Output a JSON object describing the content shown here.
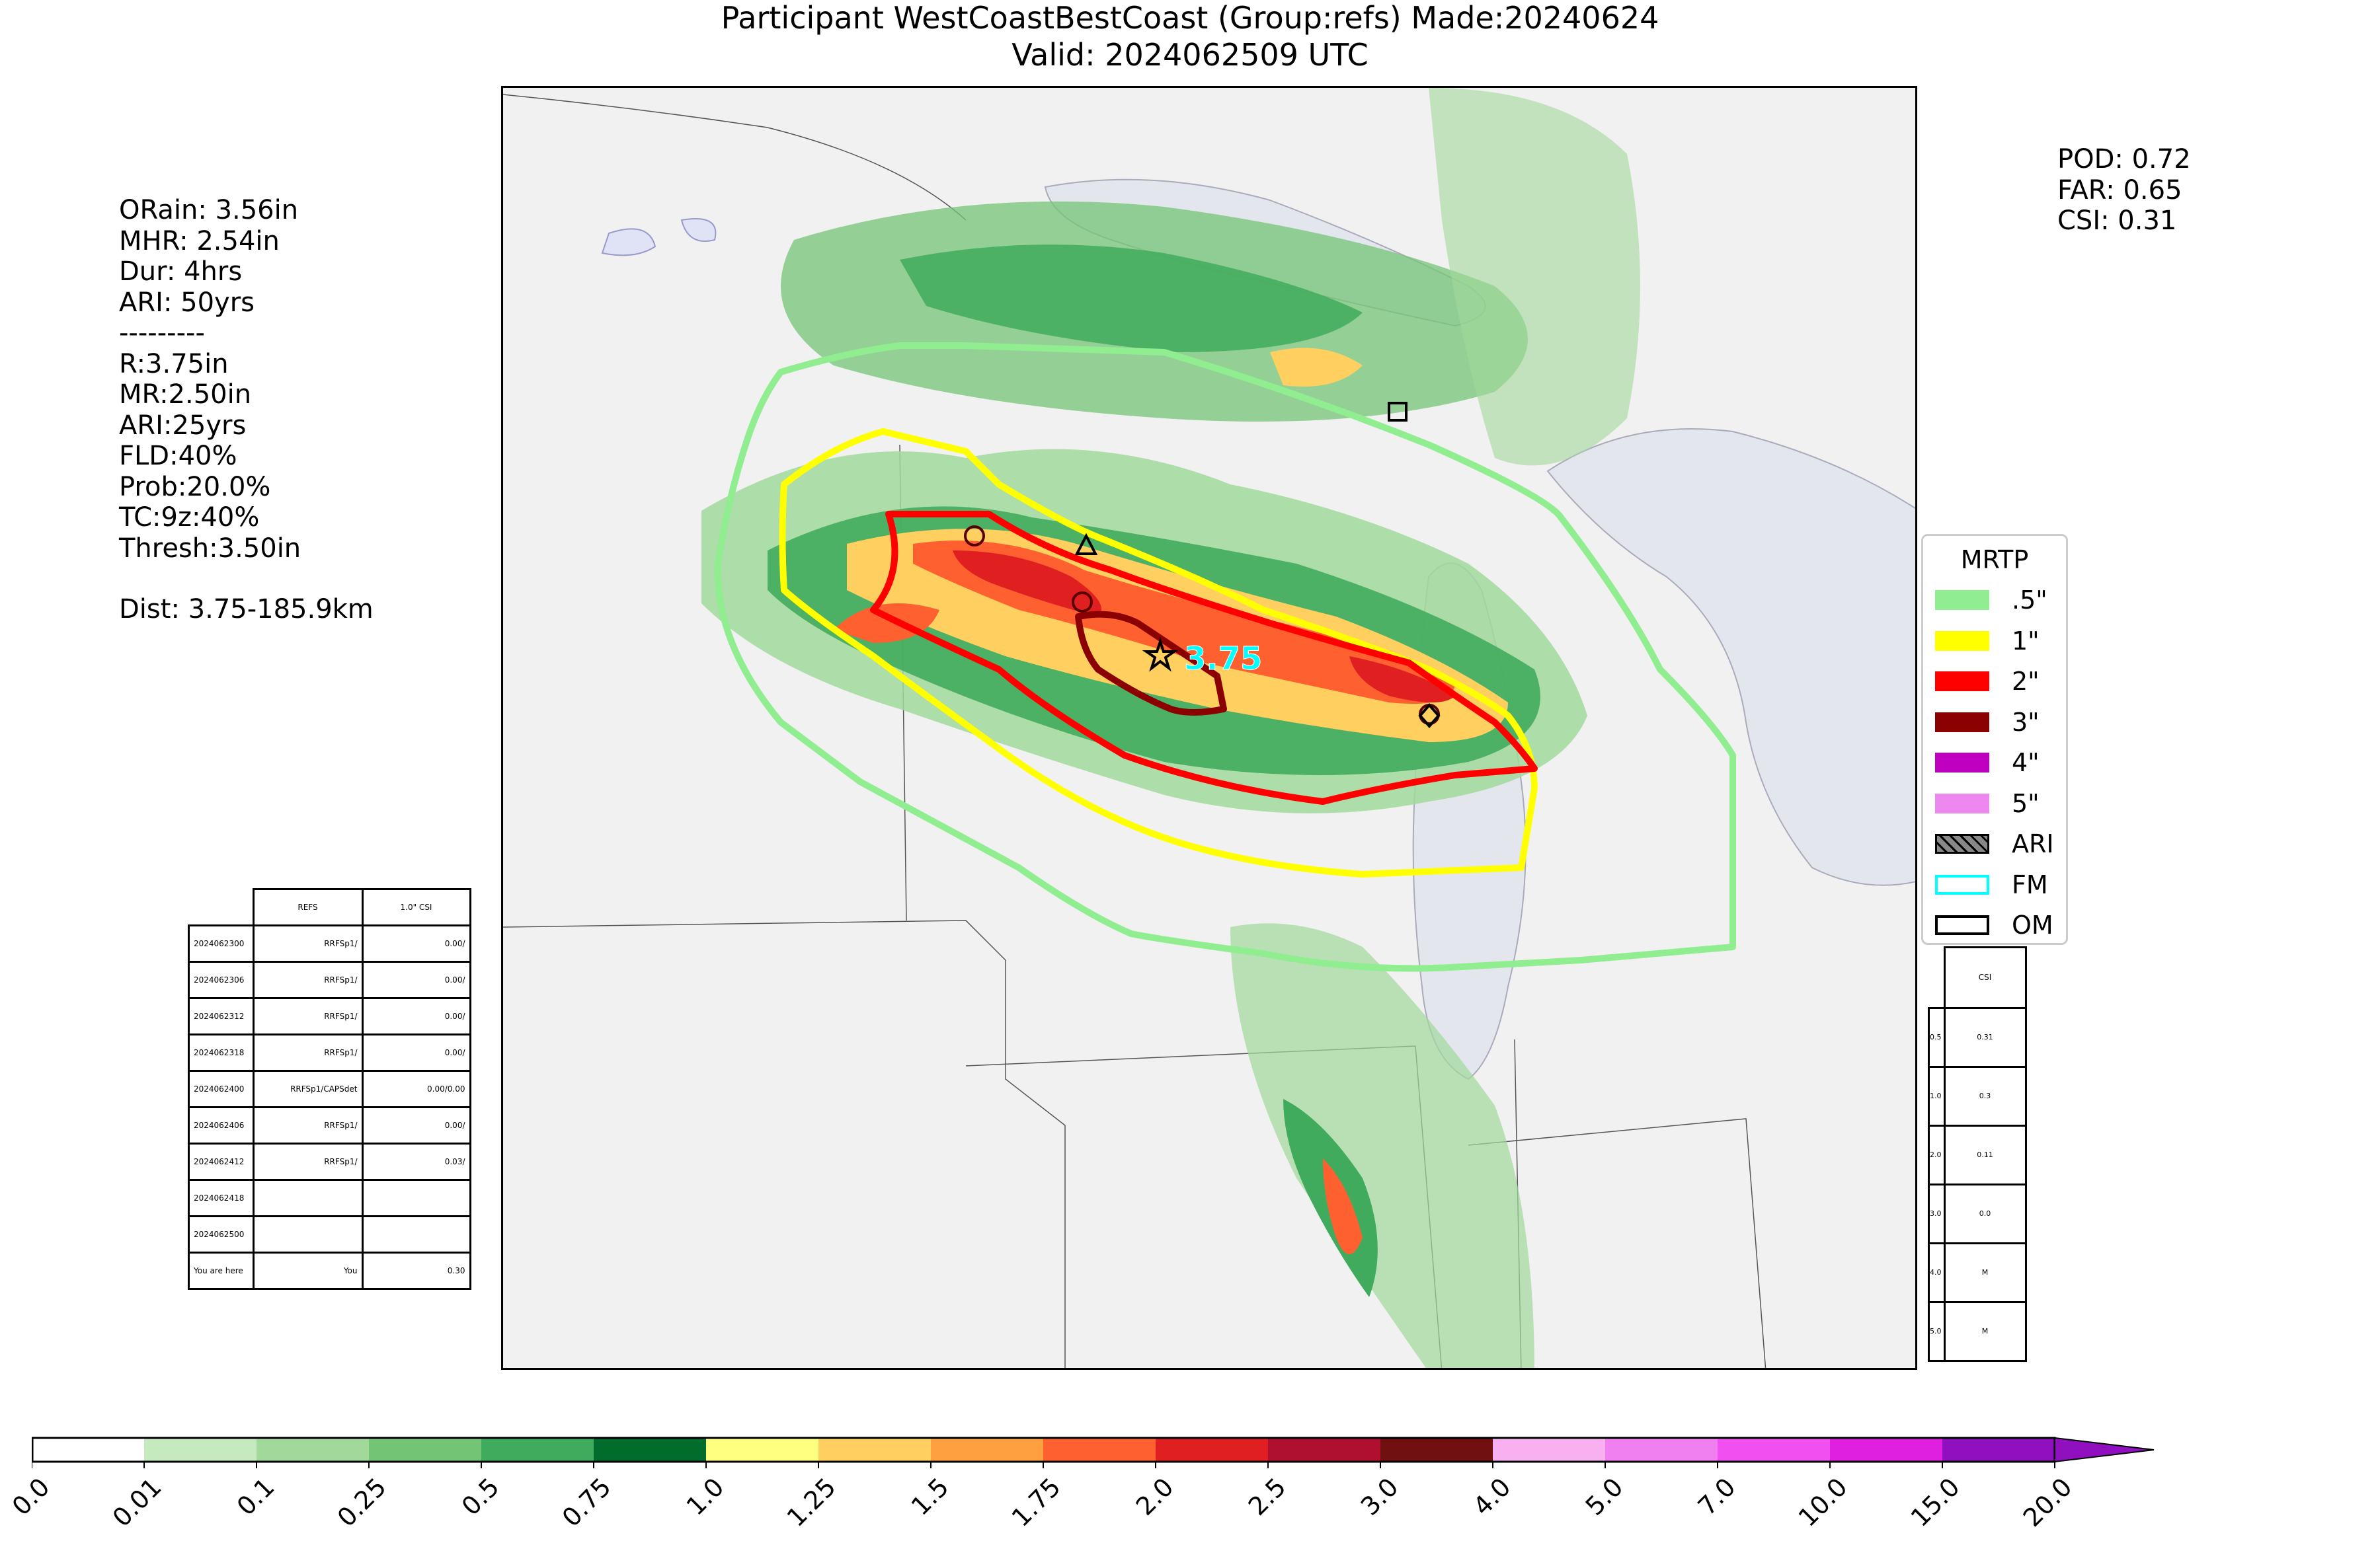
{
  "title": {
    "line1": "Participant WestCoastBestCoast (Group:refs) Made:20240624",
    "line2": "Valid: 2024062509 UTC"
  },
  "stats_left": [
    "ORain: 3.56in",
    "MHR: 2.54in",
    "Dur: 4hrs",
    "ARI: 50yrs",
    "---------",
    "R:3.75in",
    "MR:2.50in",
    "ARI:25yrs",
    "FLD:40%",
    "Prob:20.0%",
    "TC:9z:40%",
    "Thresh:3.50in",
    "",
    "Dist: 3.75-185.9km"
  ],
  "stats_right": [
    "POD: 0.72",
    "FAR: 0.65",
    "CSI: 0.31"
  ],
  "map": {
    "annotation": "3.75",
    "contour_colors": {
      ".5": "#90ee90",
      "1": "#ffff00",
      "2": "#ff0000",
      "3": "#8b0000"
    },
    "markers": [
      "circle",
      "triangle",
      "square",
      "star",
      "diamond-circle"
    ]
  },
  "legend": {
    "title": "MRTP",
    "items": [
      {
        "label": ".5\"",
        "color": "#90ee90",
        "style": "fill"
      },
      {
        "label": "1\"",
        "color": "#ffff00",
        "style": "fill"
      },
      {
        "label": "2\"",
        "color": "#ff0000",
        "style": "fill"
      },
      {
        "label": "3\"",
        "color": "#8b0000",
        "style": "fill"
      },
      {
        "label": "4\"",
        "color": "#c000c0",
        "style": "fill"
      },
      {
        "label": "5\"",
        "color": "#ee88ee",
        "style": "fill"
      },
      {
        "label": "ARI",
        "color": "#808080",
        "style": "hatch"
      },
      {
        "label": "FM",
        "color": "#00ffff",
        "style": "outline"
      },
      {
        "label": "OM",
        "color": "#000000",
        "style": "outline"
      }
    ]
  },
  "left_table": {
    "headers": [
      "",
      "REFS",
      "1.0\" CSI"
    ],
    "rows": [
      [
        "2024062300",
        "RRFSp1/",
        "0.00/"
      ],
      [
        "2024062306",
        "RRFSp1/",
        "0.00/"
      ],
      [
        "2024062312",
        "RRFSp1/",
        "0.00/"
      ],
      [
        "2024062318",
        "RRFSp1/",
        "0.00/"
      ],
      [
        "2024062400",
        "RRFSp1/CAPSdet",
        "0.00/0.00"
      ],
      [
        "2024062406",
        "RRFSp1/",
        "0.00/"
      ],
      [
        "2024062412",
        "RRFSp1/",
        "0.03/"
      ],
      [
        "2024062418",
        "",
        ""
      ],
      [
        "2024062500",
        "",
        ""
      ],
      [
        "You are here",
        "You",
        "0.30"
      ]
    ]
  },
  "right_table": {
    "header": "CSI",
    "rows": [
      [
        "0.5",
        "0.31"
      ],
      [
        "1.0",
        "0.3"
      ],
      [
        "2.0",
        "0.11"
      ],
      [
        "3.0",
        "0.0"
      ],
      [
        "4.0",
        "M"
      ],
      [
        "5.0",
        "M"
      ]
    ]
  },
  "colorbar": {
    "ticks": [
      "0.0",
      "0.01",
      "0.1",
      "0.25",
      "0.5",
      "0.75",
      "1.0",
      "1.25",
      "1.5",
      "1.75",
      "2.0",
      "2.5",
      "3.0",
      "4.0",
      "5.0",
      "7.0",
      "10.0",
      "15.0",
      "20.0"
    ],
    "colors": [
      "#ffffff",
      "#c7e9c0",
      "#a1d99b",
      "#74c476",
      "#41ab5d",
      "#006d2c",
      "#ffff80",
      "#ffd060",
      "#ffa040",
      "#ff6030",
      "#e02020",
      "#b01030",
      "#701010",
      "#f8b0f0",
      "#f080f0",
      "#f050f0",
      "#e020e0",
      "#9010c0"
    ]
  }
}
